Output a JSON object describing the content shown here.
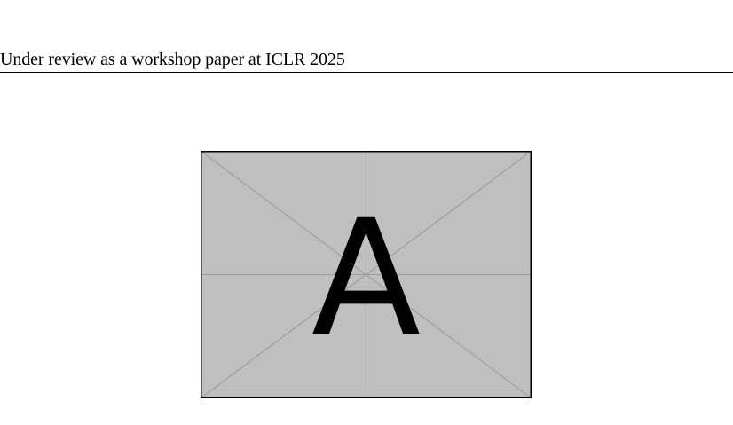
{
  "header": {
    "running_title": "Under review as a workshop paper at ICLR 2025"
  },
  "figure": {
    "placeholder_letter": "A",
    "fill_color": "#bfbfbf",
    "guide_color": "#999999",
    "border_color": "#000000"
  }
}
